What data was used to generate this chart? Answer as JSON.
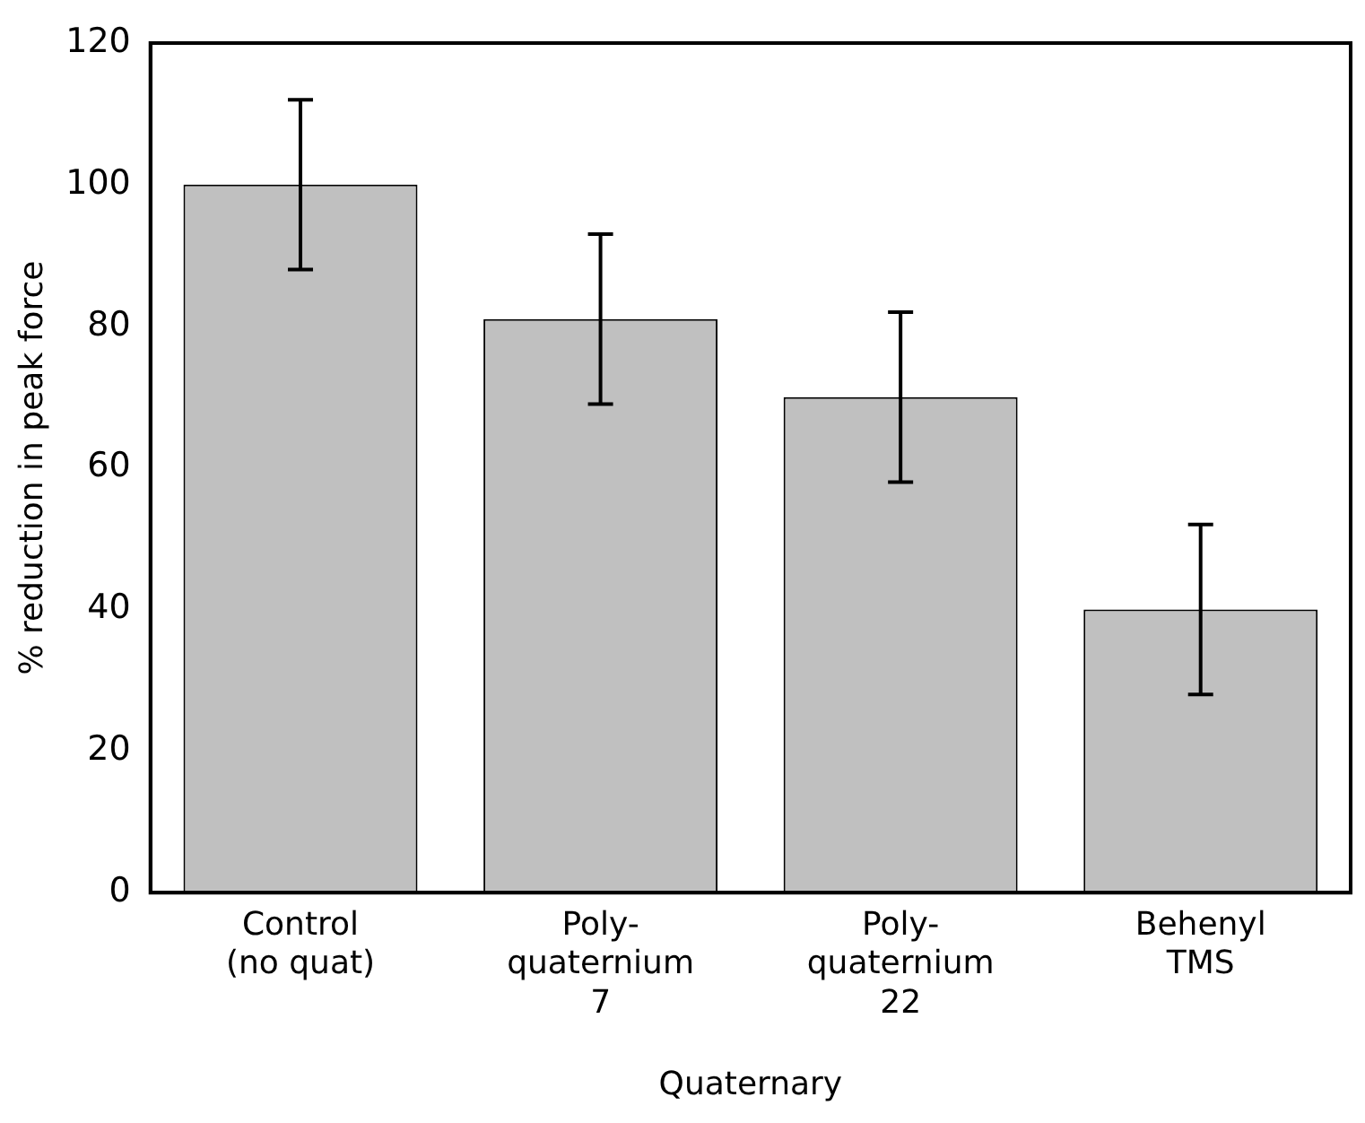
{
  "chart_data": {
    "type": "bar",
    "categories": [
      "Control\n(no quat)",
      "Poly-\nquaternium\n7",
      "Poly-\nquaternium\n22",
      "Behenyl\nTMS"
    ],
    "values": [
      100,
      81,
      70,
      40
    ],
    "errors": [
      12,
      12,
      12,
      12
    ],
    "color": "#c0c0c0",
    "xlabel": "Quaternary",
    "ylabel": "% reduction in peak force",
    "ylim": [
      0,
      120
    ],
    "yticks": [
      0,
      20,
      40,
      60,
      80,
      100,
      120
    ],
    "grid": false,
    "legend": false
  }
}
